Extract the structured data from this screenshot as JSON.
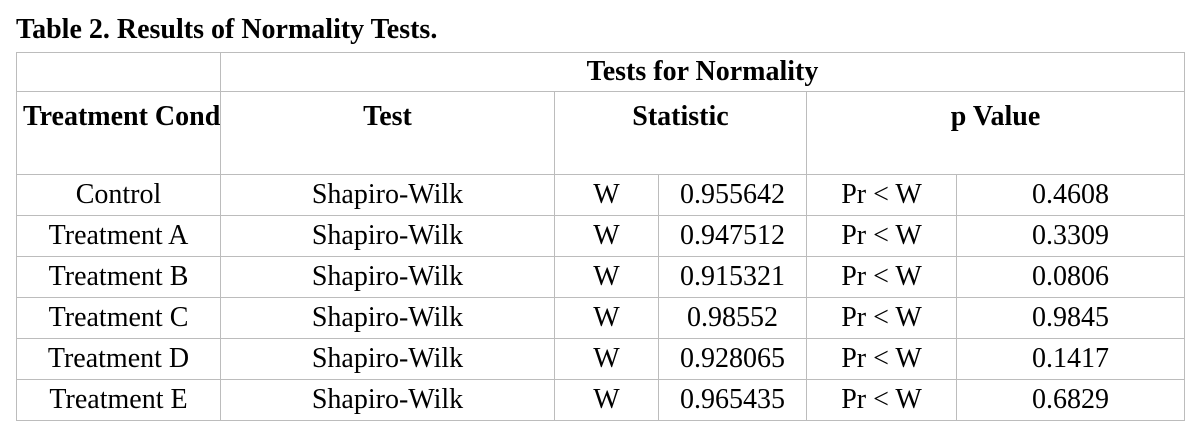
{
  "caption": "Table 2. Results of Normality Tests.",
  "table": {
    "group_header": "Tests for Normality",
    "columns": {
      "condition": "Treatment Condition",
      "test": "Test",
      "statistic": "Statistic",
      "p_value": "p Value"
    },
    "rows": [
      {
        "condition": "Control",
        "test": "Shapiro-Wilk",
        "stat_symbol": "W",
        "stat_value": "0.955642",
        "p_label": "Pr < W",
        "p_value": "0.4608"
      },
      {
        "condition": "Treatment A",
        "test": "Shapiro-Wilk",
        "stat_symbol": "W",
        "stat_value": "0.947512",
        "p_label": "Pr < W",
        "p_value": "0.3309"
      },
      {
        "condition": "Treatment B",
        "test": "Shapiro-Wilk",
        "stat_symbol": "W",
        "stat_value": "0.915321",
        "p_label": "Pr < W",
        "p_value": "0.0806"
      },
      {
        "condition": "Treatment C",
        "test": "Shapiro-Wilk",
        "stat_symbol": "W",
        "stat_value": "0.98552",
        "p_label": "Pr < W",
        "p_value": "0.9845"
      },
      {
        "condition": "Treatment D",
        "test": "Shapiro-Wilk",
        "stat_symbol": "W",
        "stat_value": "0.928065",
        "p_label": "Pr < W",
        "p_value": "0.1417"
      },
      {
        "condition": "Treatment E",
        "test": "Shapiro-Wilk",
        "stat_symbol": "W",
        "stat_value": "0.965435",
        "p_label": "Pr < W",
        "p_value": "0.6829"
      }
    ]
  }
}
